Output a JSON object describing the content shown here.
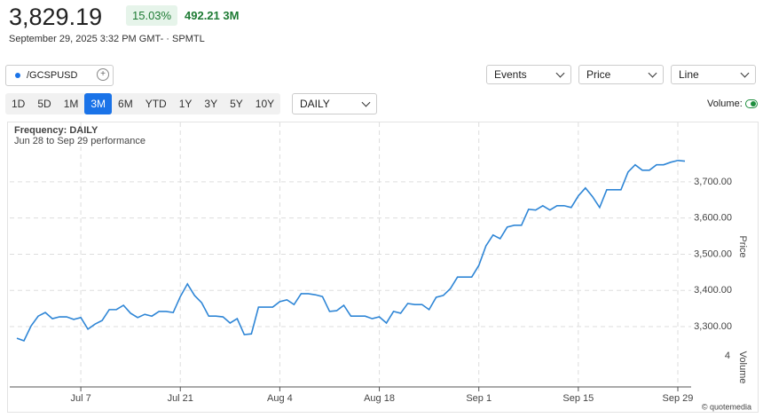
{
  "header": {
    "price": "3,829.19",
    "change_percent": "15.03%",
    "change": "492.21 3M",
    "timestamp": "September 29, 2025 3:32 PM GMT- · SPMTL"
  },
  "controls": {
    "symbol": "/GCSPUSD",
    "events": "Events",
    "price_menu": "Price",
    "chart_style": "Line",
    "ranges": [
      "1D",
      "5D",
      "1M",
      "3M",
      "6M",
      "YTD",
      "1Y",
      "3Y",
      "5Y",
      "10Y"
    ],
    "active_range_index": 3,
    "interval": "DAILY",
    "volume_toggle": "Volume:"
  },
  "chart_data": {
    "type": "line",
    "title": "Frequency: DAILY",
    "subtitle": "Jun 28 to Sep 29 performance",
    "y_label": "Price",
    "y2_label": "Volume",
    "y2_tick": "4",
    "credit": "© quotemedia",
    "grid": true,
    "categories": [
      null,
      null,
      null,
      null,
      null,
      null,
      null,
      null,
      null,
      "Jul 7",
      null,
      null,
      null,
      null,
      null,
      null,
      null,
      null,
      null,
      null,
      null,
      null,
      null,
      "Jul 21",
      null,
      null,
      null,
      null,
      null,
      null,
      null,
      null,
      null,
      null,
      null,
      null,
      null,
      "Aug 4",
      null,
      null,
      null,
      null,
      null,
      null,
      null,
      null,
      null,
      null,
      null,
      null,
      null,
      "Aug 18",
      null,
      null,
      null,
      null,
      null,
      null,
      null,
      null,
      null,
      null,
      null,
      null,
      null,
      "Sep 1",
      null,
      null,
      null,
      null,
      null,
      null,
      null,
      null,
      null,
      null,
      null,
      null,
      null,
      "Sep 15",
      null,
      null,
      null,
      null,
      null,
      null,
      null,
      null,
      null,
      null,
      null,
      null,
      null,
      "Sep 29",
      null
    ],
    "series": [
      {
        "name": "/GCSPUSD",
        "color": "#2f86d6",
        "values": [
          3268,
          3261,
          3302,
          3329,
          3339,
          3322,
          3327,
          3327,
          3320,
          3325,
          3293,
          3307,
          3317,
          3347,
          3347,
          3359,
          3337,
          3325,
          3334,
          3329,
          3342,
          3342,
          3339,
          3383,
          3418,
          3386,
          3366,
          3329,
          3329,
          3327,
          3310,
          3322,
          3278,
          3280,
          3354,
          3354,
          3354,
          3369,
          3374,
          3361,
          3391,
          3391,
          3388,
          3383,
          3342,
          3344,
          3359,
          3329,
          3329,
          3329,
          3322,
          3327,
          3310,
          3342,
          3337,
          3364,
          3361,
          3361,
          3347,
          3381,
          3386,
          3405,
          3437,
          3437,
          3437,
          3469,
          3523,
          3553,
          3543,
          3575,
          3580,
          3580,
          3624,
          3622,
          3634,
          3622,
          3634,
          3634,
          3629,
          3661,
          3683,
          3659,
          3629,
          3678,
          3678,
          3678,
          3727,
          3747,
          3732,
          3732,
          3747,
          3747,
          3754,
          3759,
          3757
        ]
      }
    ],
    "ylim": [
      3256,
      3832
    ],
    "yticks": [
      {
        "value": 3300,
        "label": "3,300.00"
      },
      {
        "value": 3400,
        "label": "3,400.00"
      },
      {
        "value": 3500,
        "label": "3,500.00"
      },
      {
        "value": 3600,
        "label": "3,600.00"
      },
      {
        "value": 3700,
        "label": "3,700.00"
      }
    ]
  }
}
